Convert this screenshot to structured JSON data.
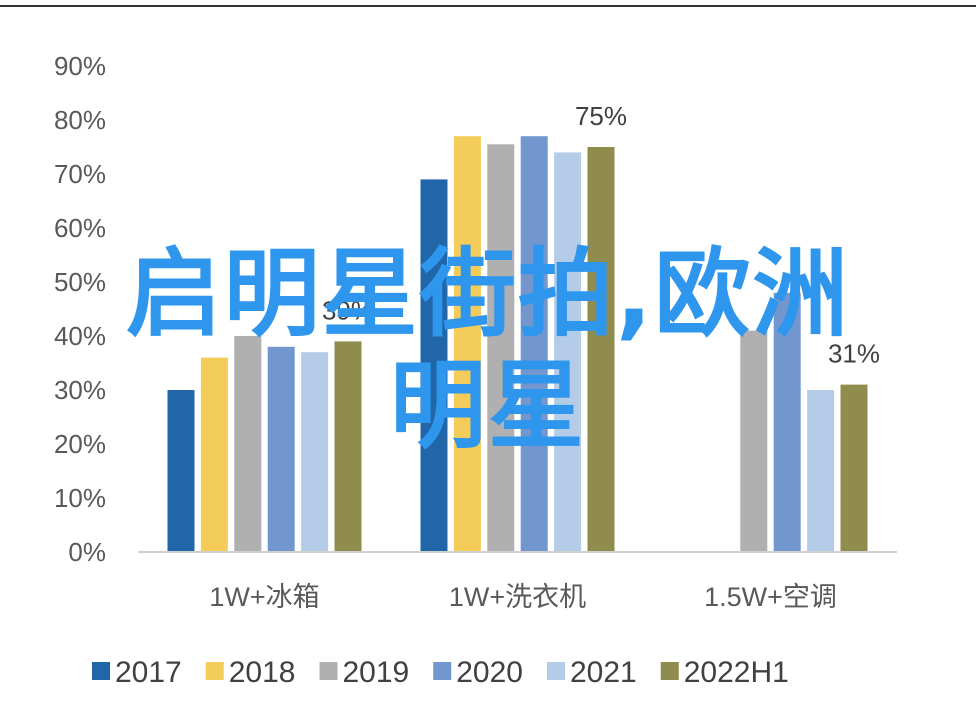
{
  "chart_data": {
    "type": "bar",
    "categories": [
      "1W+冰箱",
      "1W+洗衣机",
      "1.5W+空调"
    ],
    "series": [
      {
        "name": "2017",
        "color": "#2166a8",
        "values": [
          30,
          69,
          null
        ]
      },
      {
        "name": "2018",
        "color": "#f3cc5a",
        "values": [
          36,
          77,
          null
        ]
      },
      {
        "name": "2019",
        "color": "#b0b0b0",
        "values": [
          40,
          75.5,
          41
        ]
      },
      {
        "name": "2020",
        "color": "#7297cf",
        "values": [
          38,
          77,
          48
        ]
      },
      {
        "name": "2021",
        "color": "#b5cce9",
        "values": [
          37,
          74,
          30
        ]
      },
      {
        "name": "2022H1",
        "color": "#8f8c4e",
        "values": [
          39,
          75,
          31
        ]
      }
    ],
    "data_labels": [
      {
        "category_index": 0,
        "series_index": 5,
        "text": "39%"
      },
      {
        "category_index": 1,
        "series_index": 5,
        "text": "75%"
      },
      {
        "category_index": 2,
        "series_index": 5,
        "text": "31%"
      }
    ],
    "y_ticks": [
      "0%",
      "10%",
      "20%",
      "30%",
      "40%",
      "50%",
      "60%",
      "70%",
      "80%",
      "90%"
    ],
    "ylim": [
      0,
      90
    ],
    "y_unit": "%",
    "grid": false,
    "legend_position": "bottom",
    "title": "",
    "xlabel": "",
    "ylabel": ""
  },
  "overlay": {
    "line1": "启明星街拍,欧洲",
    "line2": "明星",
    "color": "#2f96ee"
  }
}
